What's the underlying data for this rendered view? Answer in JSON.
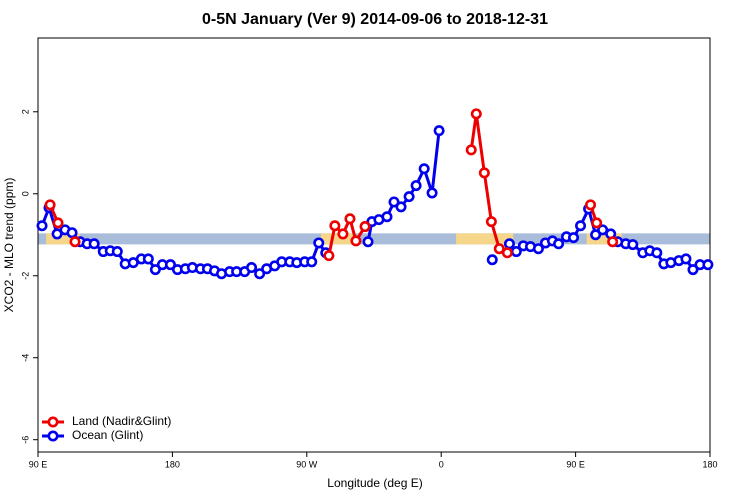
{
  "chart_data": {
    "type": "line",
    "title": "0-5N January (Ver 9)   2014-09-06 to 2018-12-31",
    "x_label": "Longitude (deg E)",
    "y_label": "XCO2 - MLO trend (ppm)",
    "xlim": [
      90,
      540
    ],
    "ylim": [
      -6.3,
      3.8
    ],
    "xticks": [
      {
        "value": 90,
        "label": "90 E"
      },
      {
        "value": 180,
        "label": "180"
      },
      {
        "value": 270,
        "label": "90 W"
      },
      {
        "value": 360,
        "label": "0"
      },
      {
        "value": 450,
        "label": "90 E"
      },
      {
        "value": 540,
        "label": "180"
      }
    ],
    "yticks": [
      -6,
      -4,
      -2,
      0,
      2
    ],
    "legend": "bottomleft",
    "band": {
      "value": -1.1,
      "segments": [
        {
          "xlim": [
            90,
            540
          ],
          "color": "#a9bcd9"
        },
        {
          "xlim": [
            95.4,
            118.2
          ],
          "color": "#f6d68a"
        },
        {
          "xlim": [
            279.4,
            300.9
          ],
          "color": "#f6d68a"
        },
        {
          "xlim": [
            370,
            408.3
          ],
          "color": "#f6d68a"
        },
        {
          "xlim": [
            457.4,
            480.9
          ],
          "color": "#f6d68a"
        }
      ]
    },
    "series": [
      {
        "name": "Ocean (Glint)",
        "color": "#0000ee",
        "x": [
          92.7,
          97.4,
          102.8,
          108.1,
          112.8,
          118.2,
          122.9,
          127.6,
          133.7,
          138.4,
          143.1,
          148.4,
          153.8,
          159.2,
          163.9,
          168.6,
          173.3,
          178.7,
          183.4,
          188.7,
          193.4,
          198.8,
          203.5,
          208.2,
          212.9,
          218.3,
          223.0,
          228.4,
          233.0,
          238.4,
          243.1,
          248.5,
          253.2,
          258.6,
          263.3,
          268.6,
          273.3,
          278.0,
          282.7,
          null,
          311.0,
          313.6,
          318.3,
          323.7,
          328.4,
          333.1,
          338.5,
          343.2,
          348.6,
          353.9,
          358.6,
          null,
          394.2,
          null,
          405.7,
          410.3,
          415.0,
          419.8,
          425.1,
          429.8,
          434.5,
          438.6,
          443.9,
          448.6,
          453.3,
          458.7,
          463.4,
          468.1,
          473.5,
          478.2,
          483.6,
          488.3,
          495.0,
          499.7,
          504.4,
          509.1,
          513.8,
          519.2,
          523.9,
          528.6,
          533.3,
          538.6
        ],
        "values": [
          -0.78,
          -0.34,
          -0.98,
          -0.88,
          -0.95,
          -1.17,
          -1.22,
          -1.22,
          -1.41,
          -1.39,
          -1.41,
          -1.71,
          -1.68,
          -1.59,
          -1.59,
          -1.85,
          -1.73,
          -1.73,
          -1.85,
          -1.83,
          -1.8,
          -1.83,
          -1.83,
          -1.88,
          -1.95,
          -1.9,
          -1.9,
          -1.9,
          -1.8,
          -1.95,
          -1.83,
          -1.76,
          -1.66,
          -1.66,
          -1.68,
          -1.66,
          -1.66,
          -1.2,
          -1.44,
          null,
          -1.17,
          -0.68,
          -0.63,
          -0.56,
          -0.2,
          -0.32,
          -0.07,
          0.2,
          0.61,
          0.02,
          1.54,
          null,
          -1.61,
          null,
          -1.22,
          -1.41,
          -1.27,
          -1.29,
          -1.34,
          -1.2,
          -1.15,
          -1.22,
          -1.05,
          -1.07,
          -0.78,
          -0.37,
          -1.0,
          -0.88,
          -0.98,
          -1.17,
          -1.22,
          -1.24,
          -1.44,
          -1.39,
          -1.44,
          -1.71,
          -1.68,
          -1.63,
          -1.59,
          -1.85,
          -1.73,
          -1.73
        ]
      },
      {
        "name": "Land (Nadir&Glint)",
        "color": "#ee0000",
        "x": [
          98.1,
          103.4,
          null,
          114.8,
          null,
          284.8,
          288.8,
          294.2,
          298.9,
          302.9,
          309.0,
          null,
          380.1,
          383.5,
          388.9,
          393.6,
          398.9,
          404.3,
          null,
          460.0,
          464.1,
          null,
          474.8
        ],
        "values": [
          -0.27,
          -0.71,
          null,
          -1.17,
          null,
          -1.51,
          -0.78,
          -0.98,
          -0.61,
          -1.15,
          -0.8,
          null,
          1.07,
          1.95,
          0.51,
          -0.68,
          -1.34,
          -1.44,
          null,
          -0.27,
          -0.71,
          null,
          -1.17
        ]
      }
    ]
  }
}
